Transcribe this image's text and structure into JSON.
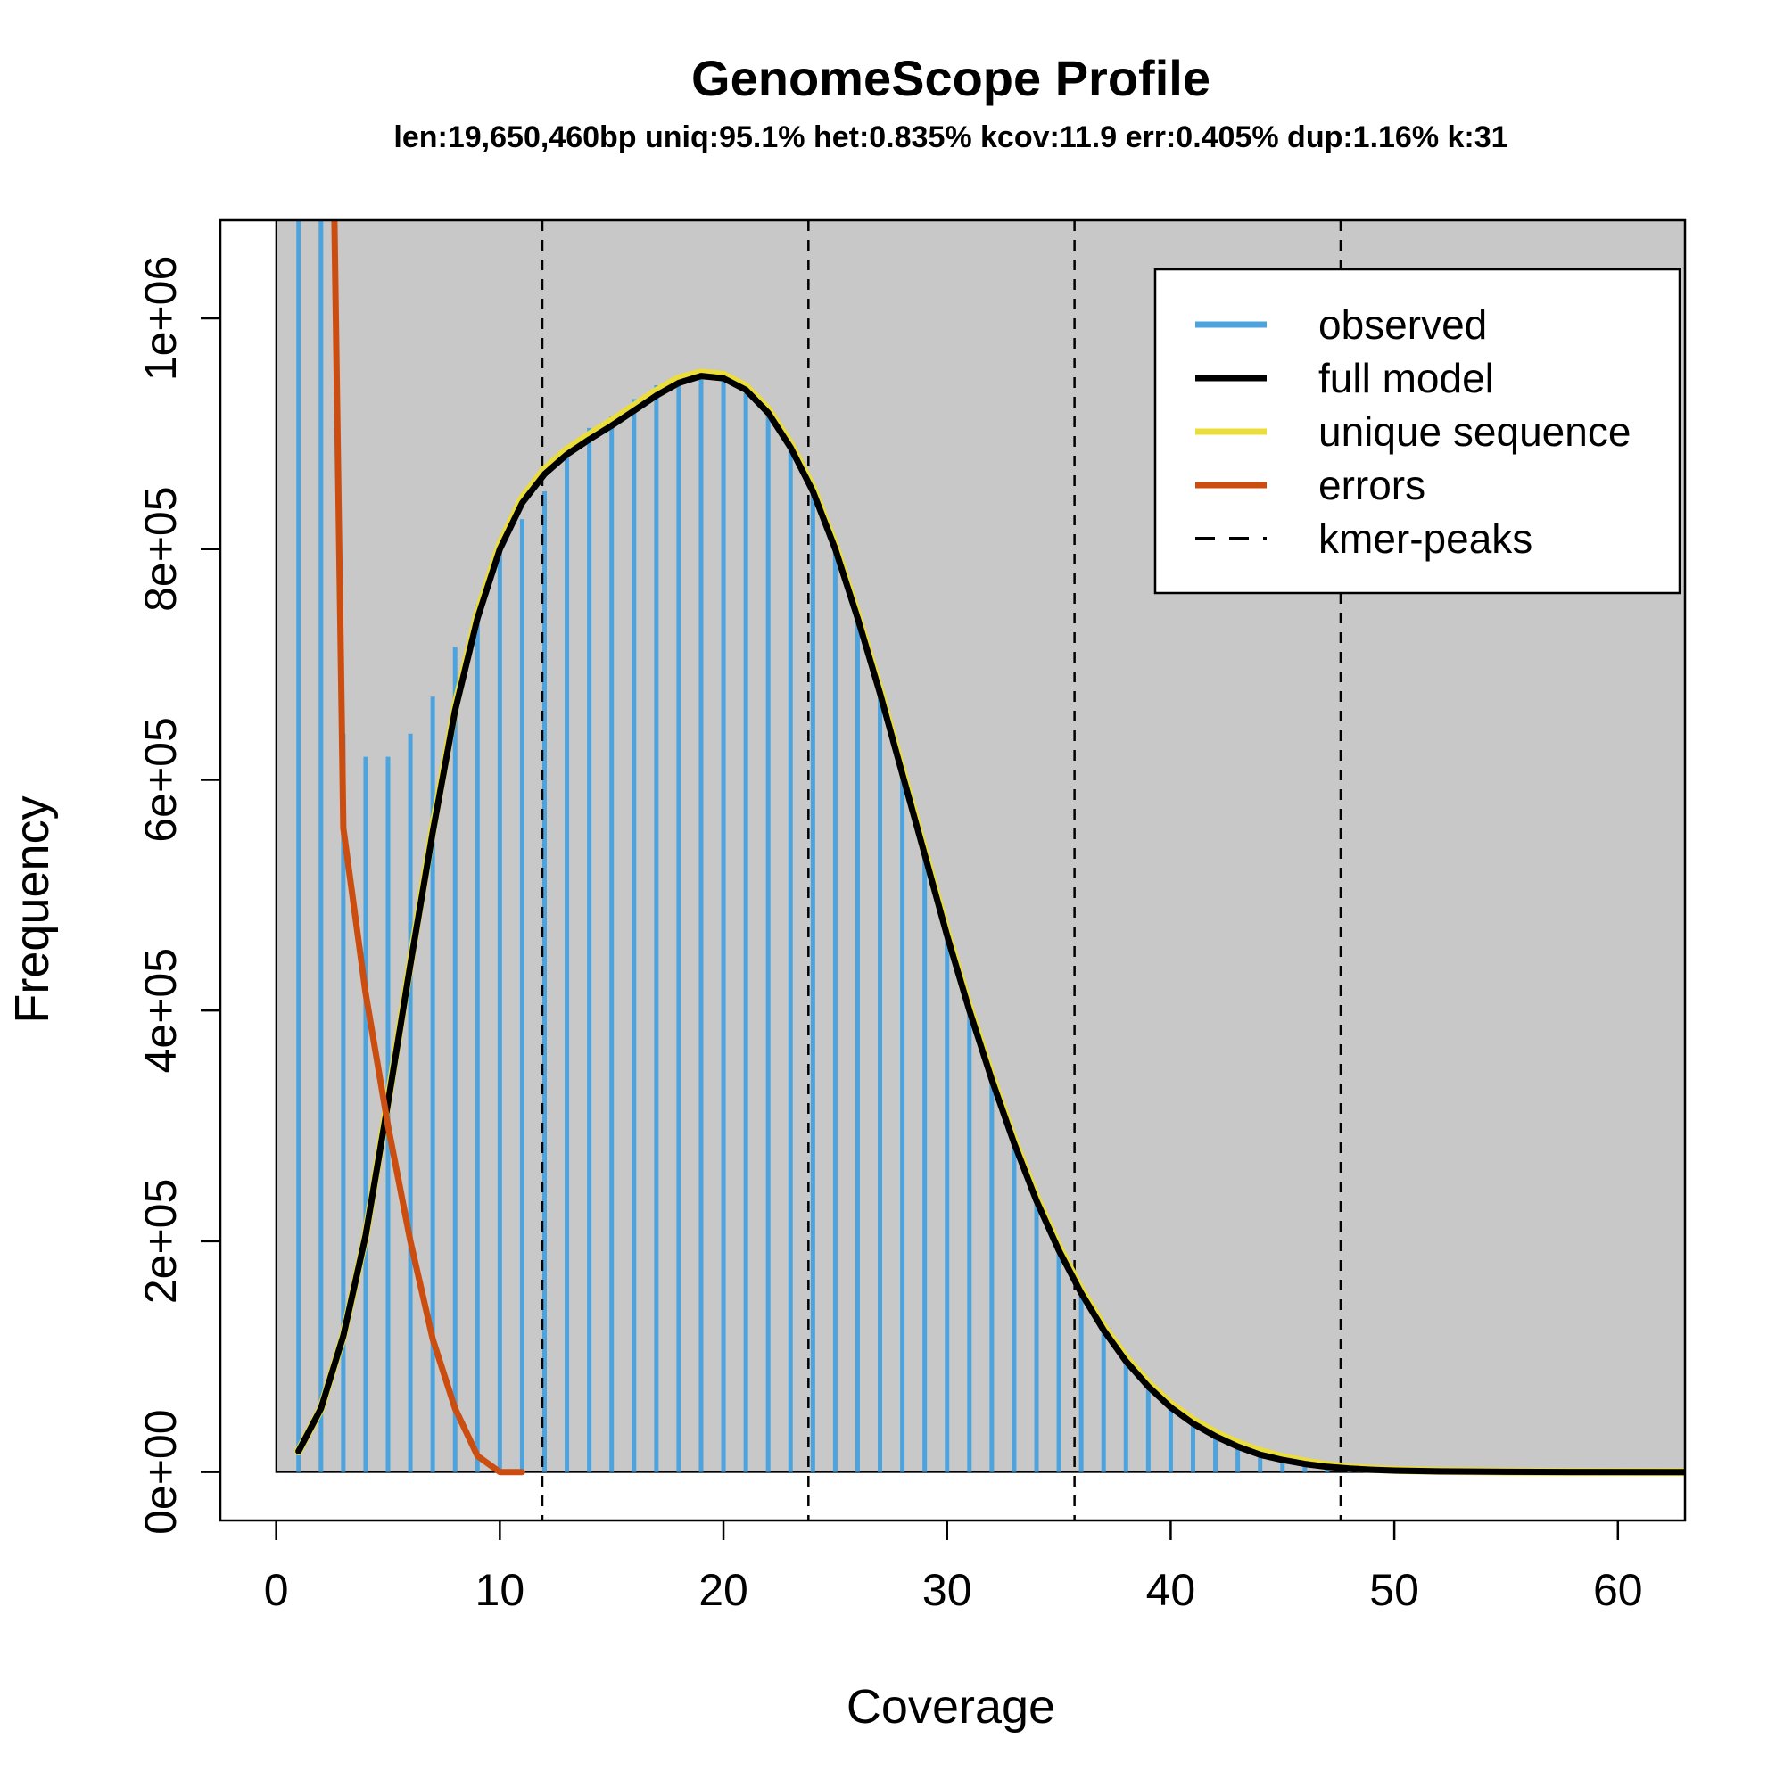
{
  "chart_data": {
    "type": "line",
    "title": "GenomeScope Profile",
    "subtitle": "len:19,650,460bp uniq:95.1%  het:0.835% kcov:11.9 err:0.405%  dup:1.16%  k:31",
    "xlabel": "Coverage",
    "ylabel": "Frequency",
    "xlim": [
      -2.5,
      63
    ],
    "ylim": [
      -42000,
      1085000
    ],
    "x_ticks": [
      0,
      10,
      20,
      30,
      40,
      50,
      60
    ],
    "x_tick_labels": [
      "0",
      "10",
      "20",
      "30",
      "40",
      "50",
      "60"
    ],
    "y_ticks": [
      0,
      200000,
      400000,
      600000,
      800000,
      1000000
    ],
    "y_tick_labels": [
      "0e+00",
      "2e+05",
      "4e+05",
      "6e+05",
      "8e+05",
      "1e+06"
    ],
    "grid": false,
    "legend_position": "top-right",
    "background_color": "#c8c8c8",
    "series": [
      {
        "name": "observed",
        "style": "histogram",
        "color": "#4da3dd",
        "x": [
          1,
          2,
          3,
          4,
          5,
          6,
          7,
          8,
          9,
          10,
          11,
          12,
          13,
          14,
          15,
          16,
          17,
          18,
          19,
          20,
          21,
          22,
          23,
          24,
          25,
          26,
          27,
          28,
          29,
          30,
          31,
          32,
          33,
          34,
          35,
          36,
          37,
          38,
          39,
          40,
          41,
          42,
          43,
          44,
          45,
          46,
          47,
          48,
          49,
          50
        ],
        "values": [
          1085000,
          1085000,
          640000,
          620000,
          620000,
          640000,
          672000,
          715000,
          752000,
          800000,
          826000,
          850000,
          880000,
          905000,
          915000,
          930000,
          942000,
          946000,
          948000,
          946000,
          935000,
          915000,
          885000,
          850000,
          800000,
          740000,
          680000,
          610000,
          540000,
          470000,
          405000,
          345000,
          290000,
          240000,
          195000,
          160000,
          128000,
          100000,
          78000,
          58000,
          43000,
          31000,
          22000,
          15000,
          10000,
          6500,
          4200,
          2800,
          1800,
          1100
        ]
      },
      {
        "name": "full model",
        "style": "line",
        "color": "#000000",
        "x": [
          1,
          2,
          3,
          4,
          5,
          6,
          7,
          8,
          9,
          10,
          11,
          12,
          13,
          14,
          15,
          16,
          17,
          18,
          19,
          20,
          21,
          22,
          23,
          24,
          25,
          26,
          27,
          28,
          29,
          30,
          31,
          32,
          33,
          34,
          35,
          36,
          37,
          38,
          39,
          40,
          41,
          42,
          43,
          44,
          45,
          46,
          47,
          48,
          49,
          50,
          52,
          55,
          58,
          63
        ],
        "values": [
          18000,
          55000,
          118000,
          205000,
          320000,
          440000,
          555000,
          660000,
          740000,
          800000,
          840000,
          865000,
          882000,
          895000,
          907000,
          920000,
          933000,
          944000,
          950000,
          948000,
          938000,
          918000,
          888000,
          850000,
          800000,
          740000,
          675000,
          605000,
          535000,
          465000,
          400000,
          340000,
          285000,
          235000,
          192000,
          155000,
          123000,
          96000,
          74000,
          56000,
          42000,
          31000,
          22000,
          15000,
          10500,
          7000,
          4500,
          3000,
          2000,
          1300,
          600,
          200,
          60,
          10
        ]
      },
      {
        "name": "unique sequence",
        "style": "line",
        "color": "#ebdd3a",
        "x": [
          1,
          2,
          3,
          4,
          5,
          6,
          7,
          8,
          9,
          10,
          11,
          12,
          13,
          14,
          15,
          16,
          17,
          18,
          19,
          20,
          21,
          22,
          23,
          24,
          25,
          26,
          27,
          28,
          29,
          30,
          31,
          32,
          33,
          34,
          35,
          36,
          37,
          38,
          39,
          40,
          41,
          42,
          43,
          44,
          45,
          46,
          47,
          48,
          49,
          50,
          52,
          55,
          58,
          63
        ],
        "values": [
          18000,
          55000,
          118000,
          205000,
          322000,
          442000,
          558000,
          663000,
          744000,
          804000,
          844000,
          869000,
          886000,
          899000,
          911000,
          924000,
          937000,
          948000,
          953000,
          951000,
          941000,
          921000,
          891000,
          853000,
          803000,
          743000,
          678000,
          608000,
          538000,
          468000,
          403000,
          343000,
          288000,
          238000,
          195000,
          158000,
          126000,
          99000,
          77000,
          59000,
          45000,
          34000,
          25000,
          18000,
          13000,
          9000,
          6000,
          4000,
          2700,
          1800,
          900,
          400,
          150,
          40
        ]
      },
      {
        "name": "errors",
        "style": "line",
        "color": "#cc4d10",
        "x": [
          2.6,
          3,
          4,
          5,
          6,
          7,
          8,
          9,
          10,
          11
        ],
        "values": [
          1085000,
          558000,
          415000,
          300000,
          200000,
          115000,
          55000,
          14000,
          0,
          0
        ]
      },
      {
        "name": "kmer-peaks",
        "style": "vline-dashed",
        "color": "#000000",
        "x": [
          11.9,
          23.8,
          35.7,
          47.6
        ]
      }
    ]
  }
}
